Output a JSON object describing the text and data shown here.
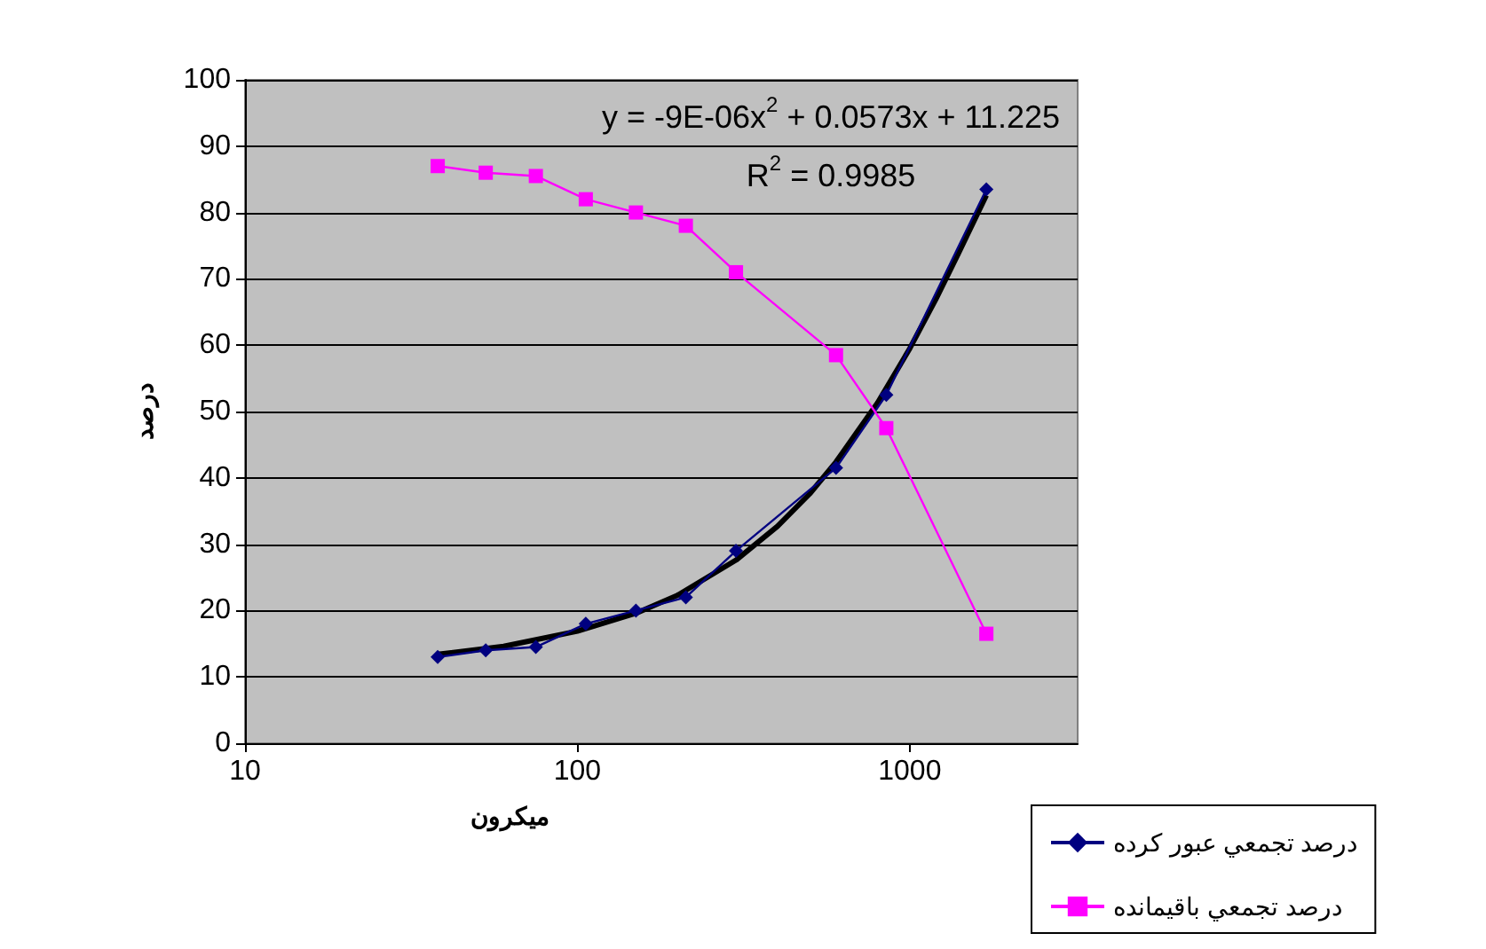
{
  "chart_data": {
    "type": "line",
    "xlabel": "ميكرون",
    "ylabel": "درصد",
    "log": "x",
    "xlim": [
      10,
      3200
    ],
    "xticks": [
      10,
      100,
      1000
    ],
    "ylim": [
      0,
      100
    ],
    "yticks": [
      0,
      10,
      20,
      30,
      40,
      50,
      60,
      70,
      80,
      90,
      100
    ],
    "grid": "y",
    "legend": "bottom right",
    "line_style": "solid",
    "annotations": [
      "y = -9E-06x$^{2}$ + 0.0573x + 11.225",
      "R$^{2}$ = 0.9985"
    ],
    "series": [
      {
        "name": "درصد تجمعي عبور كرده",
        "color": "#000080",
        "marker": "diamond",
        "x": [
          38,
          53,
          75,
          106,
          150,
          212,
          300,
          600,
          850,
          1700
        ],
        "values": [
          13,
          14,
          14.5,
          18,
          20,
          22,
          29,
          41.5,
          52.5,
          83.5
        ]
      },
      {
        "name": "درصد تجمعي باقيمانده",
        "color": "#ff00ff",
        "marker": "square",
        "x": [
          38,
          53,
          75,
          106,
          150,
          212,
          300,
          600,
          850,
          1700
        ],
        "values": [
          87,
          86,
          85.5,
          82,
          80,
          78,
          71,
          58.5,
          47.5,
          16.5
        ]
      },
      {
        "color": "#000000",
        "marker": "none",
        "x": [
          38,
          60,
          100,
          150,
          200,
          300,
          400,
          500,
          600,
          800,
          1000,
          1200,
          1400,
          1700
        ],
        "values": [
          13.4,
          14.6,
          16.9,
          19.6,
          22.3,
          27.6,
          32.7,
          37.6,
          42.4,
          51.3,
          59.5,
          67,
          73.8,
          82.6
        ]
      }
    ]
  }
}
